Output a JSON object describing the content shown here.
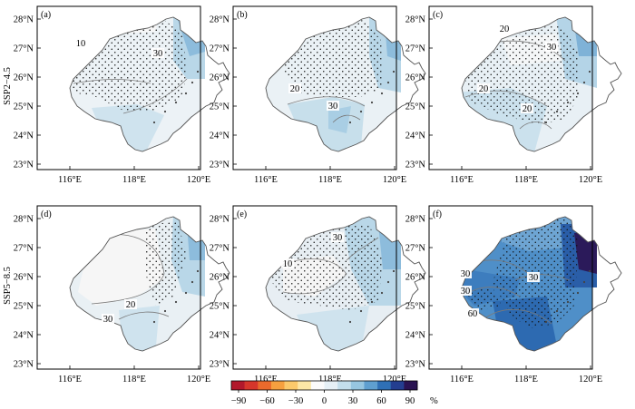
{
  "row_labels": [
    "SSP2−4.5",
    "SSP5−8.5"
  ],
  "panels": [
    {
      "label": "(a)",
      "contour_labels": [
        "10",
        "30"
      ]
    },
    {
      "label": "(b)",
      "contour_labels": [
        "20",
        "30"
      ]
    },
    {
      "label": "(c)",
      "contour_labels": [
        "20",
        "30",
        "20",
        "20"
      ]
    },
    {
      "label": "(d)",
      "contour_labels": [
        "20",
        "30"
      ]
    },
    {
      "label": "(e)",
      "contour_labels": [
        "30",
        "10"
      ]
    },
    {
      "label": "(f)",
      "contour_labels": [
        "30",
        "30",
        "30",
        "60"
      ]
    }
  ],
  "axes": {
    "lat_ticks": [
      "28°N",
      "27°N",
      "26°N",
      "25°N",
      "24°N",
      "23°N"
    ],
    "lon_ticks": [
      "116°E",
      "118°E",
      "120°E"
    ]
  },
  "colorbar": {
    "ticks": [
      "−90",
      "−60",
      "−30",
      "0",
      "30",
      "60",
      "90"
    ],
    "unit": "%",
    "colors": [
      "#b2182b",
      "#d6362b",
      "#ea6a2c",
      "#f6a03f",
      "#fbc96b",
      "#fde7a6",
      "#fbfbfb",
      "#e6f0f6",
      "#c4dfed",
      "#97c6e0",
      "#5f9fcf",
      "#2f70b5",
      "#243e90",
      "#2a1352"
    ]
  }
}
